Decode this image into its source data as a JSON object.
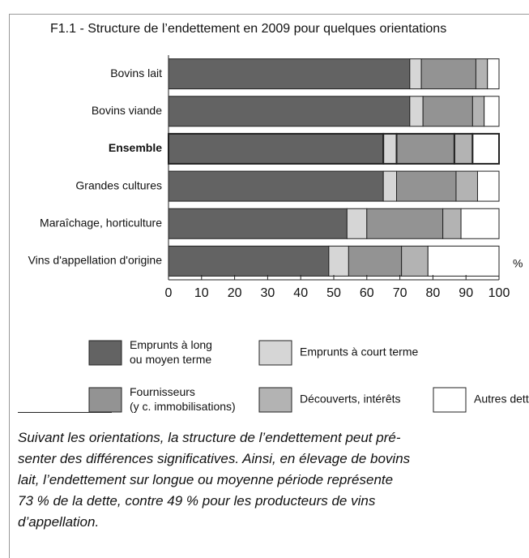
{
  "chart_data": {
    "type": "stacked_barh",
    "title": "F1.1 -  Structure de l’endettement en 2009 pour quelques orientations",
    "categories": [
      "Bovins lait",
      "Bovins viande",
      "Ensemble",
      "Grandes cultures",
      "Maraîchage, horticulture",
      "Vins d'appellation d'origine"
    ],
    "highlight": 2,
    "series": [
      {
        "name": "Emprunts à long\nou moyen terme",
        "color": "#636363",
        "values": [
          73,
          73,
          65,
          65,
          54,
          48.5
        ]
      },
      {
        "name": "Emprunts à court terme",
        "color": "#d6d6d6",
        "values": [
          3.5,
          4,
          4,
          4,
          6,
          6
        ]
      },
      {
        "name": "Fournisseurs\n(y c. immobilisations)",
        "color": "#939393",
        "values": [
          16.5,
          15,
          17.5,
          18,
          23,
          16
        ]
      },
      {
        "name": "Découverts, intérêts",
        "color": "#b3b3b3",
        "values": [
          3.5,
          3.5,
          5.5,
          6.5,
          5.5,
          8
        ]
      },
      {
        "name": "Autres dettes",
        "color": "#ffffff",
        "values": [
          3.5,
          4.5,
          8,
          6.5,
          11.5,
          21.5
        ]
      }
    ],
    "xlim": [
      0,
      100
    ],
    "xticks": [
      0,
      10,
      20,
      30,
      40,
      50,
      60,
      70,
      80,
      90,
      100
    ],
    "x_unit": "%",
    "note_lines": [
      "Suivant les orientations, la structure de l’endettement peut pré-",
      "senter des différences significatives. Ainsi, en  élevage de bovins",
      "lait, l’endettement sur longue ou moyenne période représente",
      "73 % de la dette, contre 49 % pour les producteurs de vins",
      "d’appellation."
    ]
  }
}
